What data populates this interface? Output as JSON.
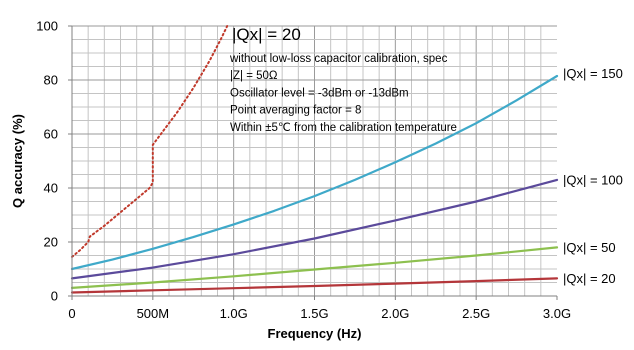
{
  "chart_data": {
    "type": "line",
    "xlabel": "Frequency (Hz)",
    "ylabel": "Q accuracy (%)",
    "xlim": [
      0,
      3000
    ],
    "ylim": [
      0,
      100
    ],
    "x_unit": "MHz",
    "x_ticks": [
      {
        "value": 0,
        "label": "0"
      },
      {
        "value": 500,
        "label": "500M"
      },
      {
        "value": 1000,
        "label": "1.0G"
      },
      {
        "value": 1500,
        "label": "1.5G"
      },
      {
        "value": 2000,
        "label": "2.0G"
      },
      {
        "value": 2500,
        "label": "2.5G"
      },
      {
        "value": 3000,
        "label": "3.0G"
      }
    ],
    "y_ticks": [
      0,
      20,
      40,
      60,
      80,
      100
    ],
    "grid": true,
    "series": [
      {
        "name": "|Qx| = 150",
        "color": "#3fa9c9",
        "style": "solid",
        "points": [
          [
            0,
            10
          ],
          [
            250,
            13.5
          ],
          [
            500,
            17.5
          ],
          [
            750,
            21.8
          ],
          [
            1000,
            26.5
          ],
          [
            1250,
            31.5
          ],
          [
            1500,
            37
          ],
          [
            1750,
            43
          ],
          [
            2000,
            49.5
          ],
          [
            2250,
            56.5
          ],
          [
            2500,
            64
          ],
          [
            2750,
            72.5
          ],
          [
            3000,
            81.5
          ]
        ]
      },
      {
        "name": "|Qx| = 100",
        "color": "#5b4a9b",
        "style": "solid",
        "points": [
          [
            0,
            6.5
          ],
          [
            500,
            10.5
          ],
          [
            1000,
            15.5
          ],
          [
            1500,
            21.3
          ],
          [
            2000,
            28
          ],
          [
            2500,
            35
          ],
          [
            3000,
            43
          ]
        ]
      },
      {
        "name": "|Qx| = 50",
        "color": "#8dc04f",
        "style": "solid",
        "points": [
          [
            0,
            3
          ],
          [
            500,
            5
          ],
          [
            1000,
            7.3
          ],
          [
            1500,
            9.8
          ],
          [
            2000,
            12.3
          ],
          [
            2500,
            15
          ],
          [
            3000,
            18
          ]
        ]
      },
      {
        "name": "|Qx| = 20",
        "color": "#b4363a",
        "style": "solid",
        "points": [
          [
            0,
            1.3
          ],
          [
            500,
            2.1
          ],
          [
            1000,
            2.9
          ],
          [
            1500,
            3.7
          ],
          [
            2000,
            4.6
          ],
          [
            2500,
            5.5
          ],
          [
            3000,
            6.5
          ]
        ]
      },
      {
        "name": "|Qx| = 20",
        "color": "#c0392b",
        "style": "dotted",
        "points": [
          [
            0,
            14.5
          ],
          [
            50,
            17
          ],
          [
            100,
            20
          ],
          [
            110,
            22
          ],
          [
            200,
            26
          ],
          [
            300,
            31
          ],
          [
            400,
            36
          ],
          [
            480,
            40
          ],
          [
            500,
            42
          ],
          [
            500,
            56
          ],
          [
            550,
            60
          ],
          [
            650,
            68
          ],
          [
            750,
            77
          ],
          [
            850,
            87
          ],
          [
            920,
            95
          ],
          [
            960,
            100
          ]
        ]
      }
    ],
    "annotation": {
      "heading": "|Qx| = 20",
      "lines": [
        "without low-loss capacitor calibration, spec",
        "|Z| = 50Ω",
        "Oscillator level = -3dBm or -13dBm",
        "Point averaging factor = 8",
        "Within ±5℃ from the calibration temperature"
      ]
    }
  }
}
